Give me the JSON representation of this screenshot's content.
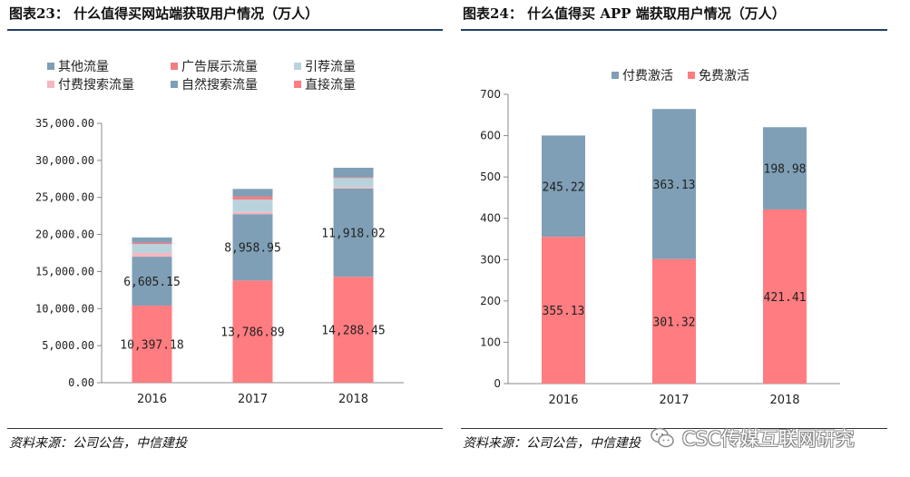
{
  "left": {
    "title": "图表23：  什么值得买网站端获取用户情况（万人）",
    "source": "资料来源：公司公告，中信建投"
  },
  "right": {
    "title": "图表24：  什么值得买 APP 端获取用户情况（万人）",
    "source": "资料来源：公司公告，中信建投"
  },
  "watermark": {
    "text": "CSC传媒互联网研究",
    "icon": "wechat-icon"
  },
  "chart_data": [
    {
      "type": "bar",
      "stacked": true,
      "title": "什么值得买网站端获取用户情况（万人）",
      "categories": [
        "2016",
        "2017",
        "2018"
      ],
      "ylim": [
        0,
        35000
      ],
      "yticks": [
        "0.00",
        "5,000.00",
        "10,000.00",
        "15,000.00",
        "20,000.00",
        "25,000.00",
        "30,000.00",
        "35,000.00"
      ],
      "ytick_values": [
        0,
        5000,
        10000,
        15000,
        20000,
        25000,
        30000,
        35000
      ],
      "legend_position": "top-left",
      "series": [
        {
          "name": "直接流量",
          "color": "#ff7c80",
          "values": [
            10397.18,
            13786.89,
            14288.45
          ],
          "labels": [
            "10,397.18",
            "13,786.89",
            "14,288.45"
          ]
        },
        {
          "name": "自然搜索流量",
          "color": "#7f9fb6",
          "values": [
            6605.15,
            8958.95,
            11918.02
          ],
          "labels": [
            "6,605.15",
            "8,958.95",
            "11,918.02"
          ]
        },
        {
          "name": "付费搜索流量",
          "color": "#f7b6c0",
          "values": [
            500,
            300,
            200
          ],
          "labels": [
            "",
            "",
            ""
          ]
        },
        {
          "name": "引荐流量",
          "color": "#b9d3dd",
          "values": [
            1200,
            1650,
            1200
          ],
          "labels": [
            "",
            "",
            ""
          ]
        },
        {
          "name": "广告展示流量",
          "color": "#f07f84",
          "values": [
            200,
            450,
            100
          ],
          "labels": [
            "",
            "",
            ""
          ]
        },
        {
          "name": "其他流量",
          "color": "#7f9fb6",
          "values": [
            700,
            1000,
            1300
          ],
          "labels": [
            "",
            "",
            ""
          ]
        }
      ],
      "legend": [
        {
          "name": "其他流量",
          "color": "#7f9fb6"
        },
        {
          "name": "广告展示流量",
          "color": "#f07f84"
        },
        {
          "name": "引荐流量",
          "color": "#b9d3dd"
        },
        {
          "name": "付费搜索流量",
          "color": "#f7b6c0"
        },
        {
          "name": "自然搜索流量",
          "color": "#7f9fb6"
        },
        {
          "name": "直接流量",
          "color": "#ff7c80"
        }
      ]
    },
    {
      "type": "bar",
      "stacked": true,
      "title": "什么值得买 APP 端获取用户情况（万人）",
      "categories": [
        "2016",
        "2017",
        "2018"
      ],
      "ylim": [
        0,
        700
      ],
      "yticks": [
        "0",
        "100",
        "200",
        "300",
        "400",
        "500",
        "600",
        "700"
      ],
      "ytick_values": [
        0,
        100,
        200,
        300,
        400,
        500,
        600,
        700
      ],
      "legend_position": "top",
      "series": [
        {
          "name": "免费激活",
          "color": "#ff7c80",
          "values": [
            355.13,
            301.32,
            421.41
          ],
          "labels": [
            "355.13",
            "301.32",
            "421.41"
          ]
        },
        {
          "name": "付费激活",
          "color": "#7f9fb6",
          "values": [
            245.22,
            363.13,
            198.98
          ],
          "labels": [
            "245.22",
            "363.13",
            "198.98"
          ]
        }
      ],
      "legend": [
        {
          "name": "付费激活",
          "color": "#7f9fb6"
        },
        {
          "name": "免费激活",
          "color": "#ff7c80"
        }
      ]
    }
  ]
}
